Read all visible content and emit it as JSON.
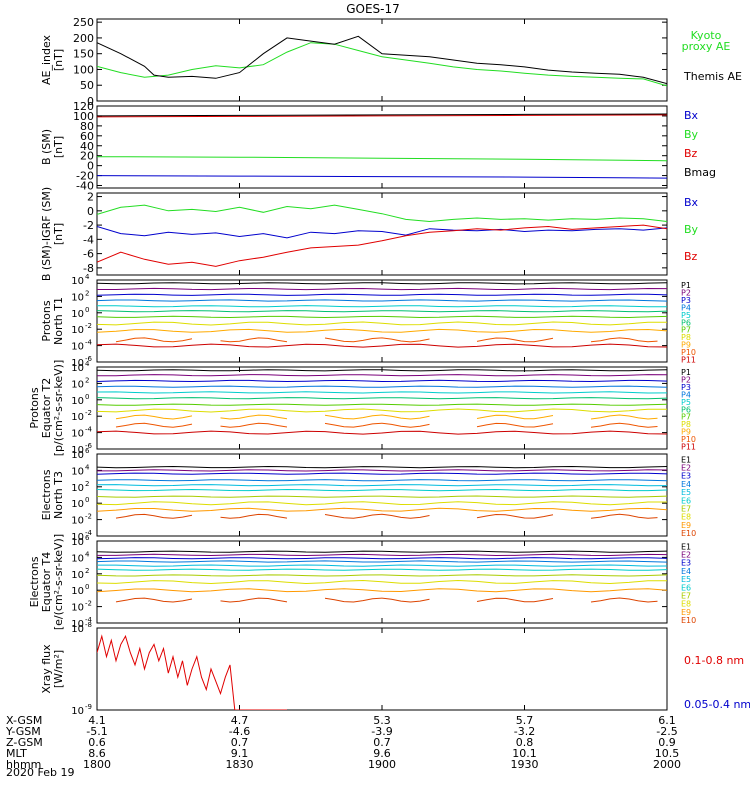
{
  "title": "GOES-17",
  "date_label": "2020 Feb 19",
  "colors": {
    "black": "#000000",
    "red": "#e00000",
    "green": "#22dd22",
    "blue": "#0000cc",
    "p": [
      "#000000",
      "#7a007a",
      "#0000cc",
      "#0077dd",
      "#00cccc",
      "#00c070",
      "#55cc00",
      "#dddd00",
      "#ffaa00",
      "#ee5500",
      "#cc0000"
    ],
    "e": [
      "#000000",
      "#7a007a",
      "#0000cc",
      "#0077dd",
      "#00bbdd",
      "#00cccc",
      "#aacc00",
      "#dddd00",
      "#ff9900",
      "#dd4400",
      "#cc0000"
    ]
  },
  "chart_data": [
    {
      "type": "line",
      "ylabel": "AE_index [nT]",
      "ylim": [
        0,
        260
      ],
      "yticks": [
        0,
        50,
        100,
        150,
        200,
        250
      ],
      "xlim": [
        0,
        120
      ],
      "series": [
        {
          "name": "Kyoto proxy AE",
          "color": "#22dd22",
          "x": [
            0,
            5,
            10,
            15,
            20,
            25,
            30,
            35,
            40,
            45,
            50,
            55,
            60,
            65,
            70,
            75,
            80,
            85,
            90,
            95,
            100,
            105,
            110,
            115,
            120
          ],
          "values": [
            110,
            90,
            75,
            82,
            100,
            112,
            105,
            115,
            155,
            185,
            180,
            160,
            140,
            130,
            120,
            108,
            100,
            95,
            88,
            82,
            78,
            75,
            72,
            70,
            48
          ]
        },
        {
          "name": "Themis AE",
          "color": "#000000",
          "x": [
            0,
            5,
            10,
            12,
            15,
            20,
            25,
            30,
            35,
            40,
            45,
            50,
            55,
            60,
            65,
            70,
            75,
            80,
            85,
            90,
            95,
            100,
            105,
            110,
            115,
            120
          ],
          "values": [
            185,
            150,
            110,
            82,
            75,
            78,
            72,
            90,
            150,
            200,
            190,
            180,
            205,
            150,
            145,
            140,
            130,
            120,
            115,
            108,
            98,
            92,
            88,
            85,
            75,
            55
          ]
        }
      ]
    },
    {
      "type": "line",
      "ylabel": "B (SM) [nT]",
      "ylim": [
        -45,
        120
      ],
      "yticks": [
        -40,
        -20,
        0,
        20,
        40,
        60,
        80,
        100,
        120
      ],
      "xlim": [
        0,
        120
      ],
      "series": [
        {
          "name": "Bx",
          "color": "#0000cc",
          "x": [
            0,
            30,
            60,
            90,
            120
          ],
          "values": [
            -20,
            -21,
            -22,
            -23,
            -25
          ]
        },
        {
          "name": "By",
          "color": "#22dd22",
          "x": [
            0,
            30,
            60,
            90,
            120
          ],
          "values": [
            18,
            17,
            15,
            13,
            10
          ]
        },
        {
          "name": "Bz",
          "color": "#e00000",
          "x": [
            0,
            30,
            60,
            90,
            120
          ],
          "values": [
            98,
            99,
            100,
            101,
            102
          ]
        },
        {
          "name": "Bmag",
          "color": "#000000",
          "x": [
            0,
            30,
            60,
            90,
            120
          ],
          "values": [
            100,
            101,
            102,
            103,
            104
          ]
        }
      ]
    },
    {
      "type": "line",
      "ylabel": "B (SM)-IGRF (SM) [nT]",
      "ylim": [
        -9,
        2.5
      ],
      "yticks": [
        -8,
        -6,
        -4,
        -2,
        0,
        2
      ],
      "xlim": [
        0,
        120
      ],
      "series": [
        {
          "name": "Bx",
          "color": "#0000cc",
          "x": [
            0,
            5,
            10,
            15,
            20,
            25,
            30,
            35,
            40,
            45,
            50,
            55,
            60,
            65,
            70,
            75,
            80,
            85,
            90,
            95,
            100,
            105,
            110,
            115,
            120
          ],
          "values": [
            -2.2,
            -3.2,
            -3.5,
            -3.0,
            -3.3,
            -3.1,
            -3.6,
            -3.2,
            -3.8,
            -3.0,
            -3.2,
            -2.8,
            -2.9,
            -3.4,
            -2.5,
            -2.7,
            -2.8,
            -2.6,
            -2.9,
            -2.7,
            -2.8,
            -2.6,
            -2.5,
            -2.7,
            -2.4
          ]
        },
        {
          "name": "By",
          "color": "#22dd22",
          "x": [
            0,
            5,
            10,
            15,
            20,
            25,
            30,
            35,
            40,
            45,
            50,
            55,
            60,
            65,
            70,
            75,
            80,
            85,
            90,
            95,
            100,
            105,
            110,
            115,
            120
          ],
          "values": [
            -0.5,
            0.5,
            0.8,
            0.0,
            0.2,
            -0.1,
            0.5,
            -0.2,
            0.6,
            0.3,
            0.8,
            0.2,
            -0.4,
            -1.2,
            -1.5,
            -1.2,
            -1.0,
            -1.2,
            -1.1,
            -1.3,
            -1.1,
            -1.2,
            -1.0,
            -1.1,
            -1.5
          ]
        },
        {
          "name": "Bz",
          "color": "#e00000",
          "x": [
            0,
            5,
            10,
            15,
            20,
            25,
            30,
            35,
            40,
            45,
            50,
            55,
            60,
            65,
            70,
            75,
            80,
            85,
            90,
            95,
            100,
            105,
            110,
            115,
            120
          ],
          "values": [
            -7.2,
            -5.8,
            -6.8,
            -7.5,
            -7.2,
            -7.8,
            -7.0,
            -6.5,
            -5.8,
            -5.2,
            -5.0,
            -4.8,
            -4.2,
            -3.5,
            -3.0,
            -2.8,
            -2.5,
            -2.7,
            -2.4,
            -2.2,
            -2.6,
            -2.4,
            -2.2,
            -2.0,
            -2.5
          ]
        }
      ]
    },
    {
      "type": "line",
      "log": true,
      "ylabel": "Protons North T1",
      "ylim": [
        -6,
        4
      ],
      "yticks": [
        4,
        2,
        0,
        -2,
        -4,
        -6
      ],
      "xlim": [
        0,
        120
      ],
      "channels": [
        "P1",
        "P2",
        "P3",
        "P4",
        "P5",
        "P6",
        "P7",
        "P8",
        "P9",
        "P10",
        "P11"
      ],
      "log_values": [
        3.6,
        2.9,
        2.2,
        1.5,
        0.8,
        0.2,
        -0.5,
        -1.3,
        -2.2,
        -3.3,
        -4.0
      ],
      "gap_channels": [
        9
      ]
    },
    {
      "type": "line",
      "log": true,
      "ylabel": "Protons Equator T2 [p/(cm²-s-sr-keV)]",
      "ylim": [
        -6,
        4
      ],
      "yticks": [
        4,
        2,
        0,
        -2,
        -4,
        -6
      ],
      "xlim": [
        0,
        120
      ],
      "channels": [
        "P1",
        "P2",
        "P3",
        "P4",
        "P5",
        "P6",
        "P7",
        "P8",
        "P9",
        "P10",
        "P11"
      ],
      "log_values": [
        3.6,
        3.0,
        2.3,
        1.6,
        0.9,
        0.2,
        -0.6,
        -1.3,
        -2.1,
        -3.1,
        -4.0
      ],
      "gap_channels": [
        8,
        9
      ]
    },
    {
      "type": "line",
      "log": true,
      "ylabel": "Electrons North T3",
      "ylim": [
        -4,
        6
      ],
      "yticks": [
        6,
        4,
        2,
        0,
        -2,
        -4
      ],
      "xlim": [
        0,
        120
      ],
      "channels": [
        "E1",
        "E2",
        "E3",
        "E4",
        "E5",
        "E6",
        "E7",
        "E8",
        "E9",
        "E10"
      ],
      "log_values": [
        4.4,
        4.0,
        3.6,
        2.8,
        2.2,
        1.6,
        0.8,
        0.0,
        -0.8,
        -1.6
      ],
      "gap_channels": [
        9
      ]
    },
    {
      "type": "line",
      "log": true,
      "ylabel": "Electrons Equator T4 [e/(cm²-s-sr-keV)]",
      "ylim": [
        -4,
        6
      ],
      "yticks": [
        6,
        4,
        2,
        0,
        -2,
        -4
      ],
      "xlim": [
        0,
        120
      ],
      "channels": [
        "E1",
        "E2",
        "E3",
        "E4",
        "E5",
        "E6",
        "E7",
        "E8",
        "E9",
        "E10"
      ],
      "log_values": [
        4.7,
        4.3,
        3.9,
        3.5,
        3.0,
        2.5,
        1.8,
        1.0,
        0.0,
        -1.2
      ],
      "gap_channels": [
        9
      ]
    },
    {
      "type": "line",
      "log": true,
      "ylabel": "Xray flux [W/m²]",
      "ylim": [
        -9,
        -8
      ],
      "yticks": [
        -8,
        -9
      ],
      "xlim": [
        0,
        120
      ],
      "series": [
        {
          "name": "0.1-0.8 nm",
          "color": "#e00000",
          "x": [
            0,
            1,
            2,
            3,
            4,
            5,
            6,
            7,
            8,
            9,
            10,
            11,
            12,
            13,
            14,
            15,
            16,
            17,
            18,
            19,
            20,
            21,
            22,
            23,
            24,
            25,
            26,
            27,
            28,
            29,
            30,
            31,
            32,
            33,
            34,
            35,
            36,
            37,
            38,
            39,
            40
          ],
          "values": [
            -8.3,
            -8.1,
            -8.35,
            -8.15,
            -8.4,
            -8.2,
            -8.1,
            -8.3,
            -8.45,
            -8.25,
            -8.5,
            -8.3,
            -8.2,
            -8.4,
            -8.25,
            -8.55,
            -8.35,
            -8.6,
            -8.4,
            -8.7,
            -8.5,
            -8.35,
            -8.6,
            -8.75,
            -8.5,
            -8.65,
            -8.8,
            -8.6,
            -8.45,
            -9.0,
            -9.0,
            -9.0,
            -9.0,
            -9.0,
            -9.0,
            -9.0,
            -9.0,
            -9.0,
            -9.0,
            -9.0,
            -9.0
          ]
        },
        {
          "name": "0.05-0.4 nm",
          "color": "#0000cc",
          "x": [],
          "values": []
        }
      ]
    }
  ],
  "xaxis": {
    "row_labels": [
      "X-GSM",
      "Y-GSM",
      "Z-GSM",
      "MLT",
      "hhmm"
    ],
    "columns": [
      {
        "x": 0,
        "vals": [
          "4.1",
          "-5.1",
          "0.6",
          "8.6",
          "1800"
        ]
      },
      {
        "x": 30,
        "vals": [
          "4.7",
          "-4.6",
          "0.7",
          "9.1",
          "1830"
        ]
      },
      {
        "x": 60,
        "vals": [
          "5.3",
          "-3.9",
          "0.7",
          "9.6",
          "1900"
        ]
      },
      {
        "x": 90,
        "vals": [
          "5.7",
          "-3.2",
          "0.8",
          "10.1",
          "1930"
        ]
      },
      {
        "x": 120,
        "vals": [
          "6.1",
          "-2.5",
          "0.9",
          "10.5",
          "2000"
        ]
      }
    ]
  },
  "ylabels": [
    [
      "AE_index",
      "[nT]"
    ],
    [
      "B (SM)",
      "[nT]"
    ],
    [
      "B (SM)-IGRF (SM)",
      "[nT]"
    ],
    [
      "Protons",
      "North T1"
    ],
    [
      "Protons",
      "Equator T2",
      "[p/(cm²-s-sr-keV)]"
    ],
    [
      "Electrons",
      "North T3"
    ],
    [
      "Electrons",
      "Equator T4",
      "[e/(cm²-s-sr-keV)]"
    ],
    [
      "Xray flux",
      "[W/m²]"
    ]
  ],
  "tick_text": {
    "p0": [
      "250",
      "200",
      "150",
      "100",
      "50",
      "0"
    ],
    "p1": [
      "120",
      "100",
      "80",
      "60",
      "40",
      "20",
      "0",
      "-20",
      "-40"
    ],
    "p2": [
      "2",
      "0",
      "-2",
      "-4",
      "-6",
      "-8"
    ],
    "log_pt": [
      "10",
      "10",
      "10",
      "10",
      "10",
      "10"
    ],
    "log_pt_exp": [
      "4",
      "2",
      "0",
      "-2",
      "-4",
      "-6"
    ],
    "log_e_exp": [
      "6",
      "4",
      "2",
      "0",
      "-2",
      "-4"
    ],
    "xray_exp": [
      "-8",
      "-9"
    ]
  },
  "legends": {
    "p0": [
      {
        "text": "Kyoto",
        "color": "#22dd22"
      },
      {
        "text": "proxy AE",
        "color": "#22dd22"
      },
      {
        "text": "Themis AE",
        "color": "#000000"
      }
    ],
    "p1": [
      {
        "text": "Bx",
        "color": "#0000cc"
      },
      {
        "text": "By",
        "color": "#22dd22"
      },
      {
        "text": "Bz",
        "color": "#e00000"
      },
      {
        "text": "Bmag",
        "color": "#000000"
      }
    ],
    "p2": [
      {
        "text": "Bx",
        "color": "#0000cc"
      },
      {
        "text": "By",
        "color": "#22dd22"
      },
      {
        "text": "Bz",
        "color": "#e00000"
      }
    ],
    "p7": [
      {
        "text": "0.1-0.8 nm",
        "color": "#e00000"
      },
      {
        "text": "0.05-0.4 nm",
        "color": "#0000cc"
      }
    ]
  }
}
